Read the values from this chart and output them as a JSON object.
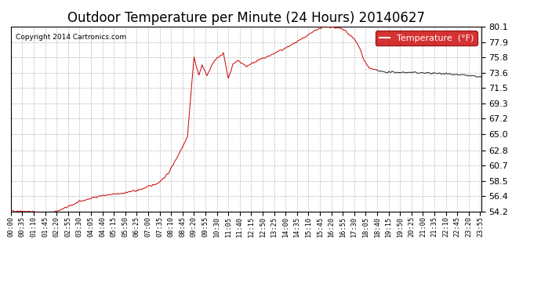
{
  "title": "Outdoor Temperature per Minute (24 Hours) 20140627",
  "copyright_text": "Copyright 2014 Cartronics.com",
  "legend_label": "Temperature  (°F)",
  "yticks": [
    54.2,
    56.4,
    58.5,
    60.7,
    62.8,
    65.0,
    67.2,
    69.3,
    71.5,
    73.6,
    75.8,
    77.9,
    80.1
  ],
  "ylim": [
    54.2,
    80.1
  ],
  "xtick_labels": [
    "00:00",
    "00:35",
    "01:10",
    "01:45",
    "02:20",
    "02:55",
    "03:30",
    "04:05",
    "04:40",
    "05:15",
    "05:50",
    "06:25",
    "07:00",
    "07:35",
    "08:10",
    "08:45",
    "09:20",
    "09:55",
    "10:30",
    "11:05",
    "11:40",
    "12:15",
    "12:50",
    "13:25",
    "14:00",
    "14:35",
    "15:10",
    "15:45",
    "16:20",
    "16:55",
    "17:30",
    "18:05",
    "18:40",
    "19:15",
    "19:50",
    "20:25",
    "21:00",
    "21:35",
    "22:10",
    "22:45",
    "23:20",
    "23:55"
  ],
  "line_color_red": "#cc0000",
  "line_color_dark": "#222222",
  "bg_color": "#ffffff",
  "grid_color": "#bbbbbb",
  "title_fontsize": 12,
  "legend_bg": "#cc0000",
  "legend_text_color": "#ffffff",
  "transition_minute": 1120
}
